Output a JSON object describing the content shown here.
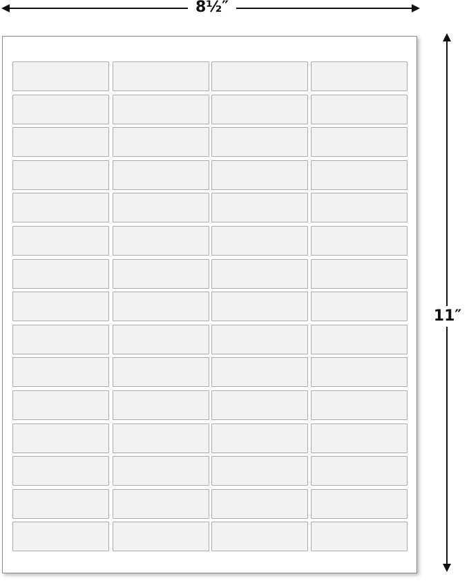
{
  "dimensions": {
    "width_label": "8½″",
    "height_label": "11″"
  },
  "sheet": {
    "rows": 15,
    "columns": 4,
    "label_color": "#f2f2f2"
  }
}
